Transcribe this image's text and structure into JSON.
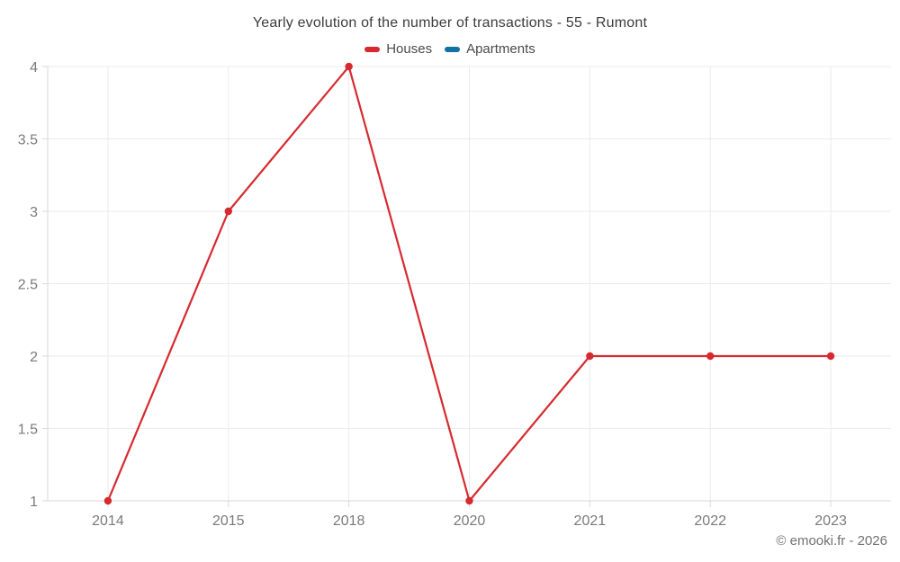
{
  "title": "Yearly evolution of the number of transactions - 55 - Rumont",
  "footer": "© emooki.fr - 2026",
  "chart_data": {
    "type": "line",
    "title": "Yearly evolution of the number of transactions - 55 - Rumont",
    "categories": [
      "2014",
      "2015",
      "2018",
      "2020",
      "2021",
      "2022",
      "2023"
    ],
    "series": [
      {
        "name": "Houses",
        "color": "#d62a30",
        "values": [
          1,
          3,
          4,
          1,
          2,
          2,
          2
        ]
      },
      {
        "name": "Apartments",
        "color": "#1272a3",
        "values": []
      }
    ],
    "xlabel": "",
    "ylabel": "",
    "ylim": [
      1,
      4
    ],
    "yticks": [
      1,
      1.5,
      2,
      2.5,
      3,
      3.5,
      4
    ],
    "grid": true,
    "legend_position": "top",
    "marker_radius": 4.2,
    "colors": {
      "gridline": "#ebebeb",
      "axis_line": "#dadada",
      "tick_text": "#7a7a7a"
    }
  }
}
